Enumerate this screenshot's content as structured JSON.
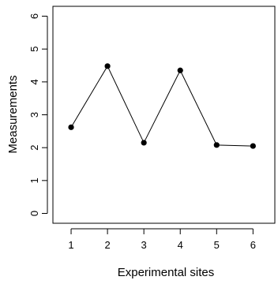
{
  "chart_data": {
    "type": "line",
    "title": "",
    "xlabel": "Experimental sites",
    "ylabel": "Measurements",
    "x": [
      1,
      2,
      3,
      4,
      5,
      6
    ],
    "xticks": [
      "1",
      "2",
      "3",
      "4",
      "5",
      "6"
    ],
    "yticks": [
      "0",
      "1",
      "2",
      "3",
      "4",
      "5",
      "6"
    ],
    "xlim": [
      0.5,
      6.6
    ],
    "ylim": [
      -0.3,
      6.3
    ],
    "series": [
      {
        "values": [
          2.62,
          4.48,
          2.15,
          4.35,
          2.08,
          2.05
        ]
      }
    ],
    "grid": false,
    "legend": "none",
    "colors": {
      "line": "#000000",
      "points": "#000000",
      "frame": "#000000"
    }
  }
}
